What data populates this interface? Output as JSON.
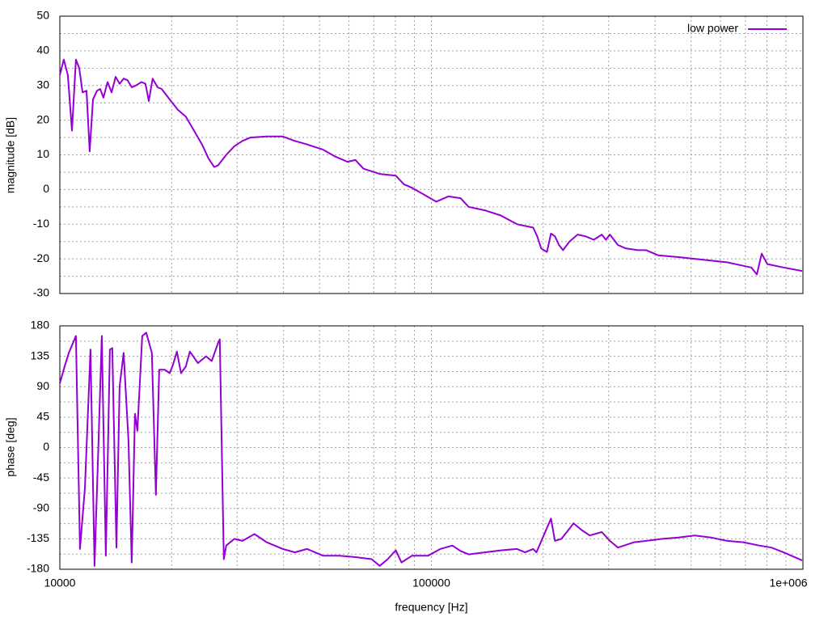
{
  "chart_data": [
    {
      "type": "line",
      "ylabel": "magnitude [dB]",
      "xscale": "log",
      "grid": true,
      "legend": "top right",
      "xtick_labels": false,
      "xlim": [
        10000,
        1000000
      ],
      "xticks": [
        10000,
        100000,
        1000000
      ],
      "x_minor_ticks": [
        20000,
        30000,
        40000,
        50000,
        60000,
        70000,
        80000,
        90000,
        200000,
        300000,
        400000,
        500000,
        600000,
        700000,
        800000,
        900000
      ],
      "ylim": [
        -30,
        50
      ],
      "yticks": [
        -30,
        -20,
        -10,
        0,
        10,
        20,
        30,
        40,
        50
      ],
      "y_minor_ticks": [
        -25,
        -15,
        -5,
        5,
        15,
        25,
        35,
        45
      ],
      "x": [
        10000,
        10250,
        10510,
        10780,
        11050,
        11280,
        11510,
        11800,
        12030,
        12280,
        12590,
        12840,
        13100,
        13440,
        13780,
        14130,
        14480,
        14850,
        15220,
        15610,
        16010,
        16580,
        17000,
        17350,
        17780,
        18320,
        18790,
        19750,
        20770,
        21830,
        22960,
        24130,
        25120,
        26020,
        26680,
        28040,
        29490,
        31000,
        32580,
        36020,
        39810,
        42920,
        46270,
        51130,
        55120,
        59410,
        62470,
        65670,
        72590,
        80230,
        84350,
        88670,
        95590,
        103000,
        111100,
        119800,
        125900,
        139200,
        153800,
        170000,
        187900,
        192700,
        197500,
        204600,
        209800,
        215100,
        220500,
        226100,
        235300,
        247500,
        260200,
        273500,
        287600,
        294900,
        302300,
        317800,
        334100,
        360200,
        378700,
        408200,
        462700,
        511300,
        565300,
        624700,
        690600,
        725900,
        751700,
        774600,
        802300,
        886700,
        995000
      ],
      "series": [
        {
          "name": "low power",
          "color": "#9400d3",
          "values": [
            33,
            37.5,
            33,
            17,
            37.5,
            35,
            28,
            28.5,
            11,
            26,
            28.5,
            29,
            26.5,
            31,
            28,
            32.5,
            30.5,
            32,
            31.5,
            29.5,
            30,
            31,
            30.5,
            25.5,
            32,
            29.5,
            29,
            26,
            23,
            21,
            17,
            13,
            9,
            6.5,
            7,
            10,
            12.5,
            14,
            15,
            15.3,
            15.3,
            14,
            13,
            11.5,
            9.5,
            8,
            8.5,
            6,
            4.5,
            4,
            1.5,
            0.5,
            -1.5,
            -3.5,
            -2,
            -2.5,
            -5,
            -6,
            -7.5,
            -10,
            -11,
            -13.5,
            -17,
            -18,
            -12.7,
            -13.5,
            -16,
            -17.5,
            -15,
            -13,
            -13.5,
            -14.5,
            -13,
            -14.5,
            -13,
            -16,
            -17,
            -17.5,
            -17.5,
            -19,
            -19.5,
            -20,
            -20.5,
            -21,
            -22,
            -22.5,
            -24.5,
            -18.5,
            -21.5,
            -22.5,
            -23.5
          ]
        }
      ]
    },
    {
      "type": "line",
      "ylabel": "phase [deg]",
      "xlabel": "frequency [Hz]",
      "xscale": "log",
      "grid": true,
      "xtick_labels": true,
      "xlim": [
        10000,
        1000000
      ],
      "xticks": [
        10000,
        100000,
        {
          "value": 1000000,
          "label": "1e+006"
        }
      ],
      "x_minor_ticks": [
        20000,
        30000,
        40000,
        50000,
        60000,
        70000,
        80000,
        90000,
        200000,
        300000,
        400000,
        500000,
        600000,
        700000,
        800000,
        900000
      ],
      "ylim": [
        -180,
        180
      ],
      "yticks": [
        -180,
        -135,
        -90,
        -45,
        0,
        45,
        90,
        135,
        180
      ],
      "y_minor_ticks": [
        -157.5,
        -112.5,
        -67.5,
        -22.5,
        22.5,
        67.5,
        112.5,
        157.5
      ],
      "x": [
        10000,
        10300,
        10570,
        11050,
        11330,
        11680,
        12090,
        12400,
        12710,
        12970,
        13300,
        13640,
        13840,
        14200,
        14480,
        14850,
        15300,
        15610,
        15930,
        16170,
        16660,
        17080,
        17690,
        18140,
        18510,
        19170,
        19750,
        20150,
        20660,
        21190,
        21830,
        22390,
        23540,
        24750,
        25630,
        26680,
        26940,
        27630,
        28040,
        29490,
        31000,
        33410,
        36020,
        39810,
        42920,
        46270,
        51130,
        56530,
        62470,
        69060,
        72590,
        76300,
        80230,
        83090,
        88670,
        98020,
        105700,
        113900,
        119800,
        125900,
        139200,
        153800,
        170000,
        178700,
        187900,
        191700,
        209800,
        215100,
        223900,
        235300,
        241300,
        253700,
        266800,
        287600,
        302300,
        317800,
        351300,
        378700,
        418500,
        462700,
        511300,
        565300,
        624700,
        690600,
        763000,
        822600,
        886700,
        995000
      ],
      "series": [
        {
          "name": "low power",
          "color": "#9400d3",
          "values": [
            95,
            120,
            140,
            165,
            -150,
            -60,
            145,
            -175,
            10,
            165,
            -160,
            145,
            147,
            -148,
            90,
            140,
            10,
            -170,
            50,
            25,
            165,
            170,
            140,
            -70,
            115,
            115,
            110,
            122,
            142,
            110,
            120,
            142,
            125,
            135,
            128,
            155,
            160,
            -165,
            -145,
            -135,
            -138,
            -128,
            -140,
            -150,
            -155,
            -150,
            -160,
            -160,
            -162,
            -165,
            -175,
            -165,
            -152,
            -170,
            -160,
            -160,
            -150,
            -145,
            -153,
            -158,
            -155,
            -152,
            -150,
            -155,
            -150,
            -155,
            -105,
            -138,
            -135,
            -120,
            -112,
            -122,
            -130,
            -125,
            -138,
            -148,
            -140,
            -138,
            -135,
            -133,
            -130,
            -133,
            -138,
            -140,
            -145,
            -148,
            -155,
            -167
          ]
        }
      ]
    }
  ]
}
